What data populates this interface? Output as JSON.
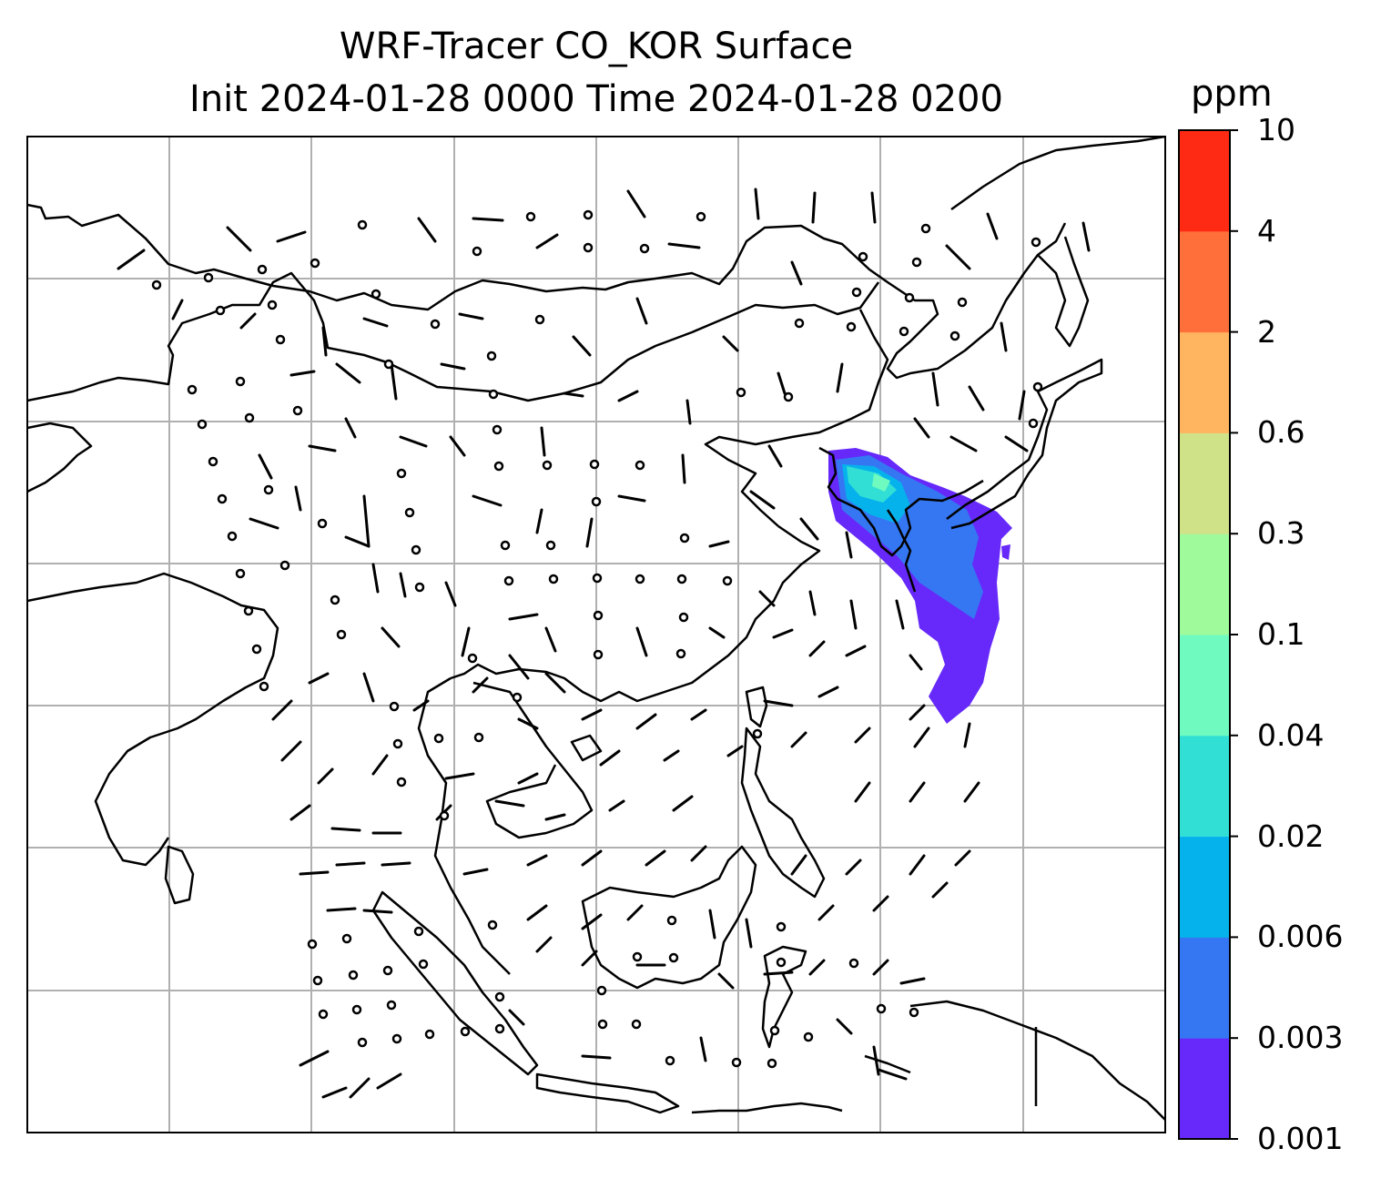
{
  "title": {
    "line1": "WRF-Tracer CO_KOR Surface",
    "line2": "Init 2024-01-28 0000 Time 2024-01-28 0200"
  },
  "colorbar": {
    "unit": "ppm",
    "levels": [
      "0.001",
      "0.003",
      "0.006",
      "0.02",
      "0.04",
      "0.1",
      "0.3",
      "0.6",
      "2",
      "4",
      "10"
    ],
    "colors": [
      "#6629fa",
      "#3577f3",
      "#06b2ec",
      "#31dfd5",
      "#6ffbbf",
      "#9ffa9b",
      "#d0e288",
      "#ffb460",
      "#ff6f3a",
      "#ff2a14"
    ]
  },
  "map": {
    "projection": "lat-lon",
    "region": "East and Southeast Asia",
    "gridlines": true,
    "wind_barbs": true,
    "plume": {
      "species": "CO_KOR",
      "location": "Korean Peninsula / Yellow Sea to Taiwan, East China Sea",
      "max_level_shown": "0.04"
    }
  }
}
